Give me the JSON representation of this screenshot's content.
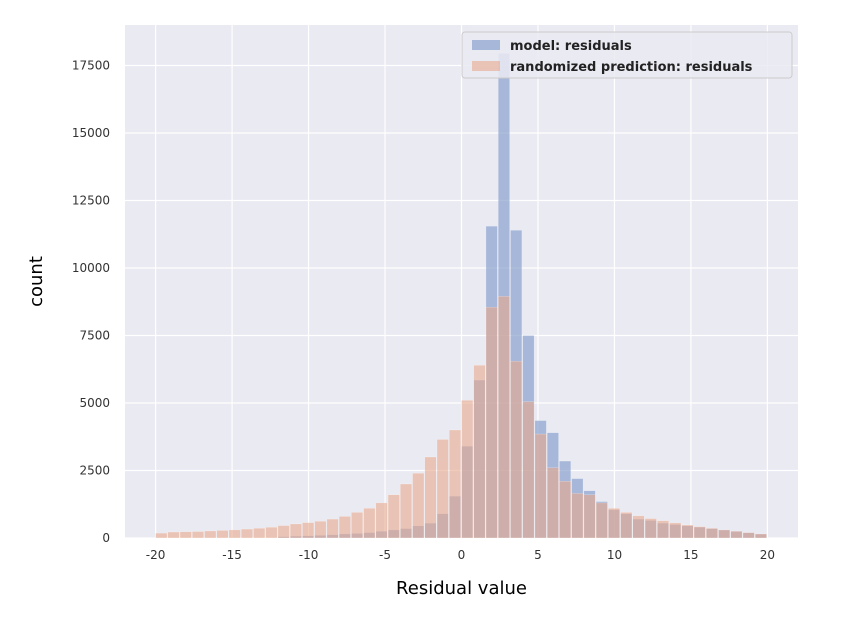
{
  "chart_data": {
    "type": "bar",
    "subtype": "overlaid-histogram",
    "xlabel": "Residual value",
    "ylabel": "count",
    "xlim": [
      -22,
      22
    ],
    "ylim": [
      0,
      19000
    ],
    "xticks": [
      -20,
      -15,
      -10,
      -5,
      0,
      5,
      10,
      15,
      20
    ],
    "yticks": [
      0,
      2500,
      5000,
      7500,
      10000,
      12500,
      15000,
      17500
    ],
    "grid": true,
    "legend_position": "top-right",
    "bin_width": 0.8,
    "bin_start": -20,
    "series": [
      {
        "name": "model: residuals",
        "color": "#8da4cf",
        "values": [
          0,
          0,
          0,
          0,
          0,
          0,
          0,
          0,
          0,
          0,
          50,
          70,
          80,
          100,
          120,
          150,
          170,
          200,
          250,
          300,
          350,
          450,
          550,
          900,
          1550,
          3400,
          5850,
          11550,
          17950,
          11400,
          7500,
          4350,
          3900,
          2850,
          2200,
          1750,
          1350,
          1050,
          900,
          700,
          650,
          550,
          500,
          450,
          400,
          350,
          300,
          250,
          200,
          150
        ]
      },
      {
        "name": "randomized prediction: residuals",
        "color": "#e8a98c",
        "values": [
          180,
          220,
          230,
          240,
          260,
          280,
          300,
          330,
          360,
          400,
          460,
          520,
          570,
          620,
          700,
          800,
          950,
          1100,
          1300,
          1600,
          2000,
          2400,
          3000,
          3650,
          4000,
          5100,
          6400,
          8550,
          8950,
          6550,
          5050,
          3850,
          2600,
          2100,
          1650,
          1600,
          1300,
          1100,
          950,
          820,
          720,
          640,
          560,
          480,
          420,
          360,
          300,
          250,
          200,
          150
        ]
      }
    ]
  }
}
